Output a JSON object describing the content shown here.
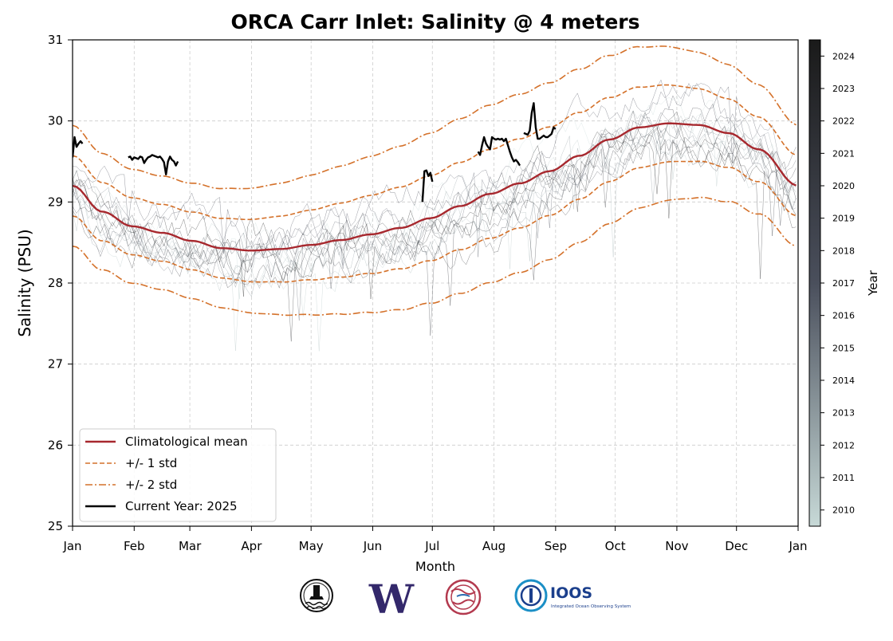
{
  "chart_data": {
    "type": "line",
    "title": "ORCA Carr Inlet: Salinity @ 4 meters",
    "xlabel": "Month",
    "ylabel": "Salinity (PSU)",
    "ylim": [
      25,
      31
    ],
    "yticks": [
      25,
      26,
      27,
      28,
      29,
      30,
      31
    ],
    "xlim": [
      0,
      365
    ],
    "xticks": [
      {
        "day": 0,
        "label": "Jan"
      },
      {
        "day": 31,
        "label": "Feb"
      },
      {
        "day": 59,
        "label": "Mar"
      },
      {
        "day": 90,
        "label": "Apr"
      },
      {
        "day": 120,
        "label": "May"
      },
      {
        "day": 151,
        "label": "Jun"
      },
      {
        "day": 181,
        "label": "Jul"
      },
      {
        "day": 212,
        "label": "Aug"
      },
      {
        "day": 243,
        "label": "Sep"
      },
      {
        "day": 273,
        "label": "Oct"
      },
      {
        "day": 304,
        "label": "Nov"
      },
      {
        "day": 334,
        "label": "Dec"
      },
      {
        "day": 365,
        "label": "Jan"
      }
    ],
    "grid": true,
    "legend_position": "bottom-left",
    "colors": {
      "mean": "#a7282e",
      "std": "#d4712a",
      "current": "#000000",
      "grid": "#cccccc"
    },
    "climatology": {
      "day": [
        0,
        15,
        30,
        45,
        60,
        75,
        90,
        105,
        120,
        135,
        150,
        165,
        180,
        195,
        210,
        225,
        240,
        255,
        270,
        285,
        300,
        315,
        330,
        345,
        365
      ],
      "mean": [
        29.2,
        28.88,
        28.7,
        28.62,
        28.52,
        28.43,
        28.4,
        28.42,
        28.47,
        28.53,
        28.6,
        28.68,
        28.8,
        28.95,
        29.1,
        29.23,
        29.38,
        29.57,
        29.77,
        29.92,
        29.97,
        29.95,
        29.85,
        29.65,
        29.2
      ]
    },
    "series": [
      {
        "name": "Climatological mean",
        "style": "solid",
        "key": "mean"
      },
      {
        "name": "+/- 1 std",
        "style": "dashed",
        "key": "std1"
      },
      {
        "name": "+/- 2 std",
        "style": "dashdot",
        "key": "std2"
      },
      {
        "name": "Current Year: 2025",
        "style": "solid",
        "key": "current",
        "segments": [
          {
            "day": [
              0,
              1,
              2,
              3,
              4,
              5
            ],
            "values": [
              29.55,
              29.8,
              29.68,
              29.72,
              29.75,
              29.72
            ]
          },
          {
            "day": [
              28,
              29,
              30,
              31,
              32,
              33,
              34,
              35,
              36,
              37,
              38,
              39,
              40,
              41,
              42,
              43,
              44,
              45,
              46,
              47,
              48,
              49,
              50,
              51,
              52,
              53
            ],
            "values": [
              29.55,
              29.56,
              29.52,
              29.55,
              29.54,
              29.53,
              29.56,
              29.55,
              29.48,
              29.52,
              29.55,
              29.56,
              29.58,
              29.57,
              29.56,
              29.55,
              29.56,
              29.53,
              29.49,
              29.34,
              29.5,
              29.56,
              29.52,
              29.5,
              29.45,
              29.5
            ]
          },
          {
            "day": [
              176,
              177,
              178,
              179,
              180,
              181
            ],
            "values": [
              29.0,
              29.38,
              29.39,
              29.32,
              29.36,
              29.25
            ]
          },
          {
            "day": [
              204,
              205,
              206,
              207,
              208,
              209,
              210,
              211,
              212,
              213,
              214,
              215,
              216,
              217,
              218,
              219,
              220,
              221,
              222,
              223,
              224,
              225
            ],
            "values": [
              29.62,
              29.58,
              29.7,
              29.8,
              29.72,
              29.68,
              29.65,
              29.8,
              29.78,
              29.77,
              29.78,
              29.77,
              29.78,
              29.75,
              29.78,
              29.7,
              29.62,
              29.55,
              29.5,
              29.52,
              29.49,
              29.45
            ]
          },
          {
            "day": [
              227,
              228,
              229,
              230,
              231,
              232,
              233,
              234,
              235,
              236,
              237,
              238,
              239,
              240,
              241,
              242,
              243
            ],
            "values": [
              29.85,
              29.84,
              29.83,
              29.88,
              30.1,
              30.22,
              29.92,
              29.78,
              29.78,
              29.8,
              29.82,
              29.8,
              29.8,
              29.82,
              29.84,
              29.92,
              29.9
            ]
          }
        ]
      }
    ],
    "colorbar": {
      "label": "Year",
      "ticks": [
        "2010",
        "2011",
        "2012",
        "2013",
        "2014",
        "2015",
        "2016",
        "2017",
        "2018",
        "2019",
        "2020",
        "2021",
        "2022",
        "2023",
        "2024"
      ],
      "colors": [
        "#c7d9d7",
        "#4a4f5c",
        "#1a1a1a"
      ]
    }
  },
  "footer_logos": [
    {
      "name": "orca-buoy-logo"
    },
    {
      "name": "uw-logo",
      "text": "W"
    },
    {
      "name": "nanoos-logo"
    },
    {
      "name": "ioos-logo",
      "text": "IOOS",
      "subtext": "Integrated Ocean Observing System"
    }
  ]
}
